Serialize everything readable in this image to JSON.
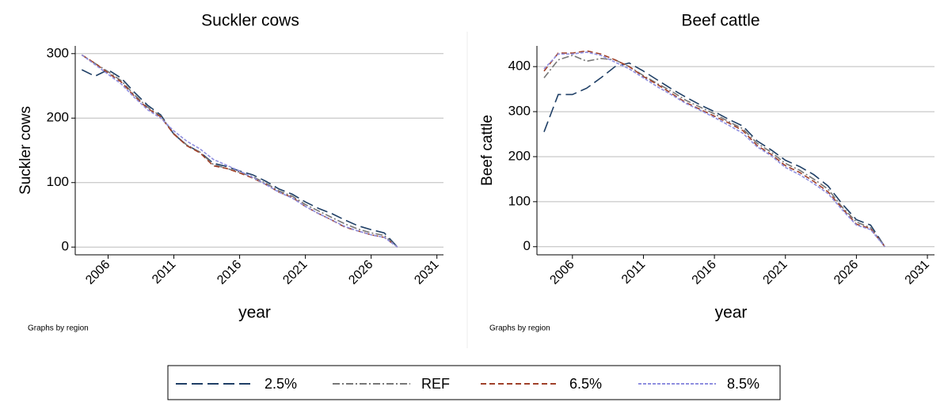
{
  "chart_data": [
    {
      "type": "line",
      "title": "Suckler cows",
      "ylabel": "Suckler cows",
      "xlabel": "year",
      "note": "Graphs by region",
      "x": [
        2004,
        2005,
        2006,
        2007,
        2008,
        2009,
        2010,
        2011,
        2012,
        2013,
        2014,
        2015,
        2016,
        2017,
        2018,
        2019,
        2020,
        2021,
        2022,
        2023,
        2024,
        2025,
        2026,
        2027,
        2028
      ],
      "series": [
        {
          "name": "2.5%",
          "color": "#1f3f66",
          "dash": "longdash",
          "values": [
            275,
            265,
            275,
            262,
            240,
            220,
            205,
            175,
            158,
            147,
            130,
            125,
            118,
            112,
            102,
            90,
            82,
            70,
            60,
            52,
            42,
            33,
            27,
            22,
            0
          ]
        },
        {
          "name": "REF",
          "color": "#777777",
          "dash": "dashdot",
          "values": [
            298,
            285,
            272,
            258,
            236,
            217,
            203,
            176,
            158,
            147,
            128,
            122,
            116,
            109,
            99,
            87,
            79,
            66,
            56,
            46,
            36,
            28,
            22,
            18,
            0
          ]
        },
        {
          "name": "6.5%",
          "color": "#a0412a",
          "dash": "dash",
          "values": [
            298,
            285,
            270,
            256,
            234,
            215,
            202,
            175,
            157,
            146,
            126,
            122,
            115,
            107,
            97,
            85,
            77,
            63,
            52,
            42,
            31,
            25,
            19,
            15,
            0
          ]
        },
        {
          "name": "8.5%",
          "color": "#8f8fe0",
          "dash": "shortdash",
          "values": [
            298,
            283,
            268,
            253,
            232,
            213,
            200,
            180,
            164,
            152,
            136,
            127,
            118,
            108,
            97,
            85,
            76,
            63,
            52,
            42,
            32,
            25,
            19,
            15,
            0
          ]
        }
      ],
      "xlim": [
        2003.5,
        2031.5
      ],
      "xticks": [
        2006,
        2011,
        2016,
        2021,
        2026,
        2031
      ],
      "ylim": [
        -12,
        312
      ],
      "yticks": [
        0,
        100,
        200,
        300
      ],
      "grid": true
    },
    {
      "type": "line",
      "title": "Beef cattle",
      "ylabel": "Beef cattle",
      "xlabel": "year",
      "note": "Graphs by region",
      "x": [
        2004,
        2005,
        2006,
        2007,
        2008,
        2009,
        2010,
        2011,
        2012,
        2013,
        2014,
        2015,
        2016,
        2017,
        2018,
        2019,
        2020,
        2021,
        2022,
        2023,
        2024,
        2025,
        2026,
        2027,
        2028
      ],
      "series": [
        {
          "color": "#1f3f66",
          "dash": "longdash",
          "values": [
            255,
            338,
            338,
            352,
            375,
            400,
            408,
            390,
            370,
            350,
            332,
            315,
            300,
            283,
            268,
            235,
            215,
            192,
            178,
            160,
            135,
            95,
            60,
            48,
            0
          ]
        },
        {
          "color": "#777777",
          "dash": "dashdot",
          "values": [
            375,
            415,
            425,
            412,
            418,
            415,
            400,
            380,
            362,
            345,
            325,
            310,
            295,
            278,
            262,
            230,
            210,
            185,
            170,
            150,
            128,
            88,
            55,
            42,
            0
          ]
        },
        {
          "color": "#a0412a",
          "dash": "dash",
          "values": [
            390,
            430,
            430,
            435,
            428,
            415,
            400,
            378,
            360,
            340,
            320,
            305,
            290,
            275,
            258,
            225,
            205,
            180,
            165,
            145,
            122,
            85,
            50,
            40,
            0
          ]
        },
        {
          "color": "#8f8fe0",
          "dash": "shortdash",
          "values": [
            395,
            428,
            428,
            432,
            425,
            410,
            395,
            375,
            355,
            337,
            318,
            303,
            287,
            270,
            252,
            222,
            202,
            176,
            160,
            140,
            118,
            82,
            48,
            38,
            0
          ]
        }
      ],
      "xlim": [
        2003.5,
        2031.5
      ],
      "xticks": [
        2006,
        2011,
        2016,
        2021,
        2026,
        2031
      ],
      "ylim": [
        -18,
        446
      ],
      "yticks": [
        0,
        100,
        200,
        300,
        400
      ],
      "grid": true
    }
  ]
}
